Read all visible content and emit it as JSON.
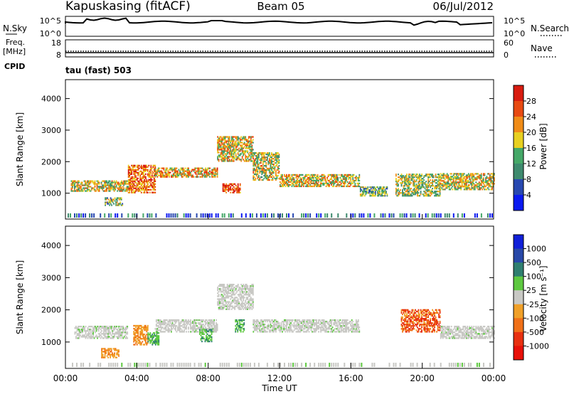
{
  "header": {
    "station": "Kapuskasing (fitACF)",
    "beam": "Beam 05",
    "date": "06/Jul/2012"
  },
  "top_panels": {
    "nsky_label": "N.Sky",
    "nsky_ticks": [
      "10^5",
      "10^0"
    ],
    "nsearch_label": "N.Search",
    "nsearch_ticks": [
      "10^5",
      "10^0"
    ],
    "freq_label": "Freq.",
    "freq_unit": "[MHz]",
    "freq_ticks": [
      "18",
      "8"
    ],
    "nave_label": "Nave",
    "nave_ticks": [
      "60",
      "0"
    ],
    "cpid_label": "CPID",
    "cpid_text": "tau (fast) 503"
  },
  "chart_data": [
    {
      "type": "heatmap",
      "name": "power",
      "ylabel": "Slant Range [km]",
      "ylim": [
        180,
        4600
      ],
      "yticks": [
        1000,
        2000,
        3000,
        4000
      ],
      "xlim": [
        0,
        24
      ],
      "colorbar_label": "Power [dB]",
      "colorbar_ticks": [
        "4",
        "8",
        "12",
        "16",
        "20",
        "24",
        "28"
      ],
      "colorbar_colors": [
        "#0a1af0",
        "#2848b0",
        "#3e8a6e",
        "#45a868",
        "#e8d020",
        "#f08c18",
        "#e84a12",
        "#d81c10"
      ],
      "regions": [
        {
          "t0": 0.3,
          "t1": 3.5,
          "r0": 1050,
          "r1": 1400,
          "level": 0.55
        },
        {
          "t0": 2.2,
          "t1": 3.2,
          "r0": 600,
          "r1": 850,
          "level": 0.45
        },
        {
          "t0": 3.5,
          "t1": 5.0,
          "r0": 1000,
          "r1": 1900,
          "level": 0.75
        },
        {
          "t0": 5.0,
          "t1": 8.5,
          "r0": 1500,
          "r1": 1800,
          "level": 0.65
        },
        {
          "t0": 8.5,
          "t1": 10.5,
          "r0": 2000,
          "r1": 2800,
          "level": 0.6
        },
        {
          "t0": 8.8,
          "t1": 9.8,
          "r0": 1000,
          "r1": 1300,
          "level": 0.85
        },
        {
          "t0": 10.5,
          "t1": 12.0,
          "r0": 1400,
          "r1": 2300,
          "level": 0.55
        },
        {
          "t0": 12.0,
          "t1": 16.5,
          "r0": 1200,
          "r1": 1600,
          "level": 0.6
        },
        {
          "t0": 16.5,
          "t1": 18.0,
          "r0": 900,
          "r1": 1200,
          "level": 0.4
        },
        {
          "t0": 18.5,
          "t1": 21.0,
          "r0": 900,
          "r1": 1600,
          "level": 0.5
        },
        {
          "t0": 21.0,
          "t1": 24.0,
          "r0": 1100,
          "r1": 1600,
          "level": 0.55
        }
      ]
    },
    {
      "type": "heatmap",
      "name": "velocity",
      "xlabel": "Time UT",
      "ylabel": "Slant Range [km]",
      "ylim": [
        180,
        4600
      ],
      "yticks": [
        1000,
        2000,
        3000,
        4000
      ],
      "xlim": [
        0,
        24
      ],
      "xticks": [
        "00:00",
        "04:00",
        "08:00",
        "12:00",
        "16:00",
        "20:00",
        "00:00"
      ],
      "colorbar_label": "Velocity [m s⁻¹]",
      "colorbar_ticks": [
        "1000",
        "500",
        "100",
        "25",
        "-25",
        "-100",
        "-500",
        "-1000"
      ],
      "colorbar_colors": [
        "#1020d8",
        "#2848a8",
        "#2f7f70",
        "#5ec840",
        "#c8c8c4",
        "#f0a028",
        "#f07018",
        "#e83010",
        "#e81008"
      ],
      "regions": [
        {
          "t0": 0.5,
          "t1": 3.5,
          "r0": 1100,
          "r1": 1500,
          "kind": "gray"
        },
        {
          "t0": 2.0,
          "t1": 3.0,
          "r0": 500,
          "r1": 800,
          "kind": "orange"
        },
        {
          "t0": 3.8,
          "t1": 4.6,
          "r0": 900,
          "r1": 1500,
          "kind": "orange"
        },
        {
          "t0": 4.6,
          "t1": 5.2,
          "r0": 900,
          "r1": 1300,
          "kind": "green"
        },
        {
          "t0": 5.0,
          "t1": 8.5,
          "r0": 1300,
          "r1": 1700,
          "kind": "gray"
        },
        {
          "t0": 7.5,
          "t1": 8.2,
          "r0": 1000,
          "r1": 1400,
          "kind": "green"
        },
        {
          "t0": 8.5,
          "t1": 10.5,
          "r0": 2000,
          "r1": 2800,
          "kind": "gray"
        },
        {
          "t0": 9.5,
          "t1": 10.0,
          "r0": 1300,
          "r1": 1700,
          "kind": "green"
        },
        {
          "t0": 10.5,
          "t1": 16.5,
          "r0": 1300,
          "r1": 1700,
          "kind": "gray"
        },
        {
          "t0": 18.8,
          "t1": 21.0,
          "r0": 1300,
          "r1": 2000,
          "kind": "red"
        },
        {
          "t0": 21.0,
          "t1": 24.0,
          "r0": 1100,
          "r1": 1500,
          "kind": "gray"
        }
      ]
    }
  ]
}
